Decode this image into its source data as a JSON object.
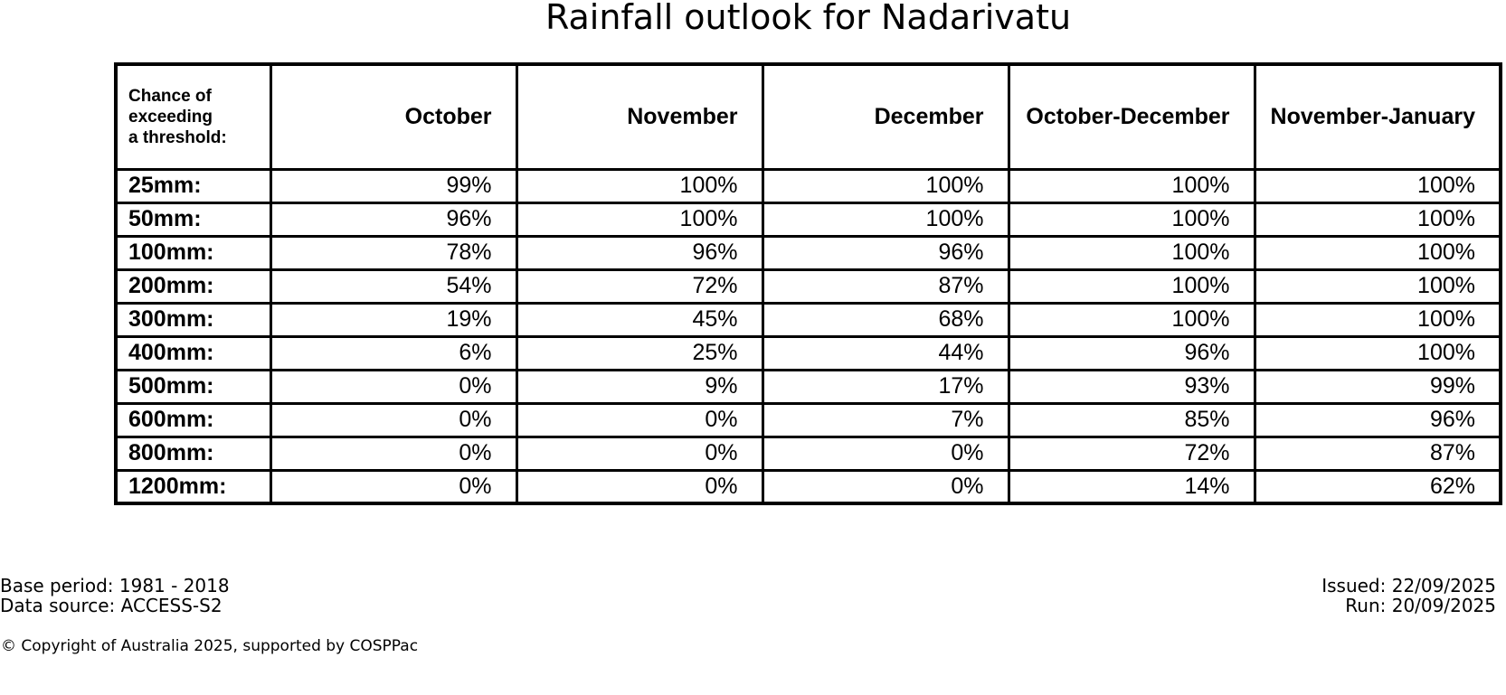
{
  "title": "Rainfall outlook for Nadarivatu",
  "table": {
    "corner_lines": [
      "Chance of",
      "exceeding",
      "a threshold:"
    ],
    "columns": [
      "October",
      "November",
      "December",
      "October-December",
      "November-January"
    ],
    "rows": [
      {
        "label": "25mm:",
        "values": [
          "99%",
          "100%",
          "100%",
          "100%",
          "100%"
        ]
      },
      {
        "label": "50mm:",
        "values": [
          "96%",
          "100%",
          "100%",
          "100%",
          "100%"
        ]
      },
      {
        "label": "100mm:",
        "values": [
          "78%",
          "96%",
          "96%",
          "100%",
          "100%"
        ]
      },
      {
        "label": "200mm:",
        "values": [
          "54%",
          "72%",
          "87%",
          "100%",
          "100%"
        ]
      },
      {
        "label": "300mm:",
        "values": [
          "19%",
          "45%",
          "68%",
          "100%",
          "100%"
        ]
      },
      {
        "label": "400mm:",
        "values": [
          "6%",
          "25%",
          "44%",
          "96%",
          "100%"
        ]
      },
      {
        "label": "500mm:",
        "values": [
          "0%",
          "9%",
          "17%",
          "93%",
          "99%"
        ]
      },
      {
        "label": "600mm:",
        "values": [
          "0%",
          "0%",
          "7%",
          "85%",
          "96%"
        ]
      },
      {
        "label": "800mm:",
        "values": [
          "0%",
          "0%",
          "0%",
          "72%",
          "87%"
        ]
      },
      {
        "label": "1200mm:",
        "values": [
          "0%",
          "0%",
          "0%",
          "14%",
          "62%"
        ]
      }
    ]
  },
  "footer": {
    "base_period": "Base period: 1981 - 2018",
    "data_source": "Data source: ACCESS-S2",
    "issued": "Issued: 22/09/2025",
    "run": "Run: 20/09/2025",
    "copyright": "© Copyright of Australia 2025, supported by COSPPac"
  },
  "colors": {
    "text": "#000000",
    "border": "#000000",
    "background": "#ffffff"
  },
  "chart_data": {
    "type": "table",
    "title": "Rainfall outlook for Nadarivatu",
    "row_header_label": "Chance of exceeding a threshold:",
    "columns": [
      "October",
      "November",
      "December",
      "October-December",
      "November-January"
    ],
    "thresholds_mm": [
      25,
      50,
      100,
      200,
      300,
      400,
      500,
      600,
      800,
      1200
    ],
    "values_percent": [
      [
        99,
        100,
        100,
        100,
        100
      ],
      [
        96,
        100,
        100,
        100,
        100
      ],
      [
        78,
        96,
        96,
        100,
        100
      ],
      [
        54,
        72,
        87,
        100,
        100
      ],
      [
        19,
        45,
        68,
        100,
        100
      ],
      [
        6,
        25,
        44,
        96,
        100
      ],
      [
        0,
        9,
        17,
        93,
        99
      ],
      [
        0,
        0,
        7,
        85,
        96
      ],
      [
        0,
        0,
        0,
        72,
        87
      ],
      [
        0,
        0,
        0,
        14,
        62
      ]
    ],
    "notes": {
      "base_period": "1981 - 2018",
      "data_source": "ACCESS-S2",
      "issued": "22/09/2025",
      "run": "20/09/2025"
    }
  }
}
